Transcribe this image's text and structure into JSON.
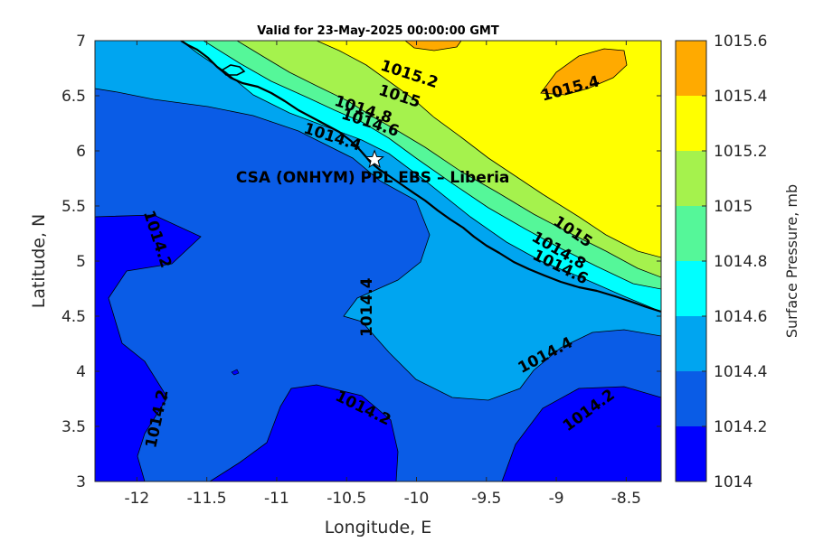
{
  "chart_data": {
    "type": "contour",
    "title": "Valid for 23-May-2025 00:00:00 GMT",
    "xlabel": "Longitude, E",
    "ylabel": "Latitude, N",
    "xlim": [
      -12.3,
      -8.25
    ],
    "ylim": [
      3,
      7
    ],
    "xticks": [
      -12,
      -11.5,
      -11,
      -10.5,
      -10,
      -9.5,
      -9,
      -8.5
    ],
    "xtick_labels": [
      "-12",
      "-11.5",
      "-11",
      "-10.5",
      "-10",
      "-9.5",
      "-9",
      "-8.5"
    ],
    "yticks": [
      3,
      3.5,
      4,
      4.5,
      5,
      5.5,
      6,
      6.5,
      7
    ],
    "ytick_labels": [
      "3",
      "3.5",
      "4",
      "4.5",
      "5",
      "5.5",
      "6",
      "6.5",
      "7"
    ],
    "colorbar": {
      "label": "Surface Pressure, mb",
      "levels": [
        1014,
        1014.2,
        1014.4,
        1014.6,
        1014.8,
        1015,
        1015.2,
        1015.4,
        1015.6
      ],
      "level_labels": [
        "1014",
        "1014.2",
        "1014.4",
        "1014.6",
        "1014.8",
        "1015",
        "1015.2",
        "1015.4",
        "1015.6"
      ],
      "colors": [
        "#0000ff",
        "#0a5ce6",
        "#00a5f0",
        "#00ffff",
        "#55f799",
        "#a5f24d",
        "#ffff00",
        "#ffaa00",
        "#ff5500"
      ]
    },
    "contour_labels": [
      {
        "text": "1015.2",
        "lon": -10.05,
        "lat": 6.7,
        "angle": 18
      },
      {
        "text": "1015.4",
        "lon": -8.9,
        "lat": 6.57,
        "angle": -15
      },
      {
        "text": "1015",
        "lon": -10.12,
        "lat": 6.5,
        "angle": 18
      },
      {
        "text": "1014.8",
        "lon": -10.38,
        "lat": 6.38,
        "angle": 18
      },
      {
        "text": "1014.6",
        "lon": -10.33,
        "lat": 6.26,
        "angle": 18
      },
      {
        "text": "1014.4",
        "lon": -10.6,
        "lat": 6.13,
        "angle": 18
      },
      {
        "text": "1015",
        "lon": -8.88,
        "lat": 5.27,
        "angle": 34
      },
      {
        "text": "1014.8",
        "lon": -8.98,
        "lat": 5.1,
        "angle": 30
      },
      {
        "text": "1014.6",
        "lon": -8.97,
        "lat": 4.95,
        "angle": 26
      },
      {
        "text": "1014.2",
        "lon": -11.85,
        "lat": 5.2,
        "angle": 72
      },
      {
        "text": "1014.4",
        "lon": -10.36,
        "lat": 4.58,
        "angle": -90
      },
      {
        "text": "1014.4",
        "lon": -9.08,
        "lat": 4.15,
        "angle": -28
      },
      {
        "text": "1014.2",
        "lon": -10.38,
        "lat": 3.67,
        "angle": 26
      },
      {
        "text": "1014.2",
        "lon": -11.86,
        "lat": 3.57,
        "angle": -78
      },
      {
        "text": "1014.2",
        "lon": -8.77,
        "lat": 3.65,
        "angle": -36
      }
    ],
    "site": {
      "name": "CSA (ONHYM) PPL EBS  – Liberia",
      "lon": -10.3,
      "lat": 5.92
    }
  }
}
